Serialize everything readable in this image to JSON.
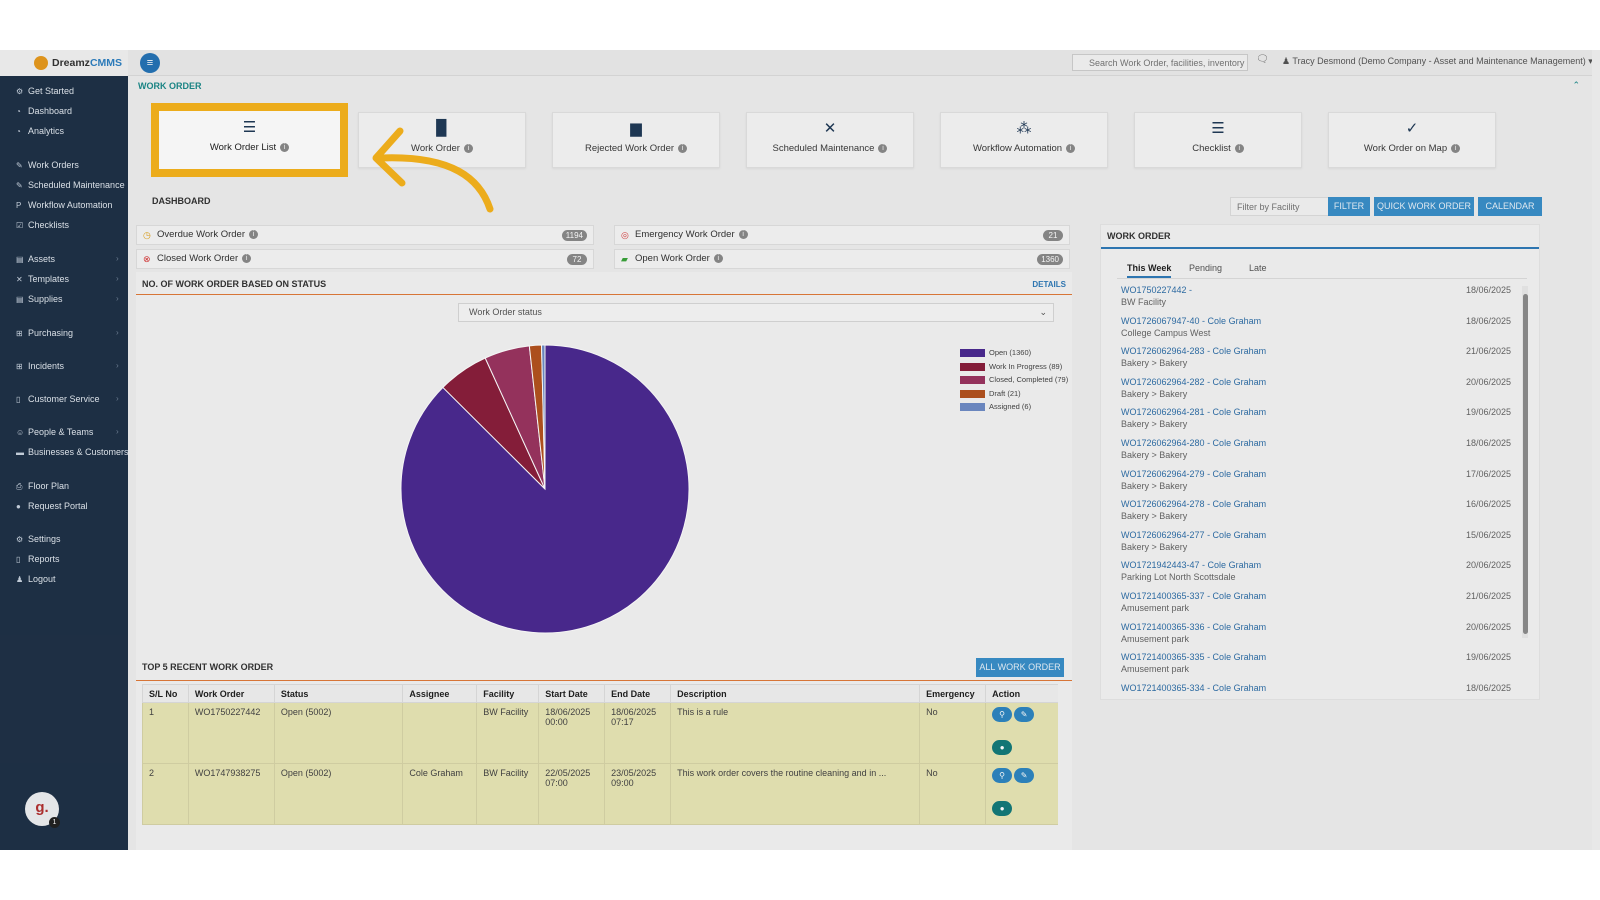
{
  "app": {
    "logo_prefix": "Dreamz",
    "logo_suffix": "CMMS"
  },
  "topbar": {
    "search_placeholder": "Search Work Order, facilities, inventory",
    "user": "Tracy Desmond (Demo Company - Asset and Maintenance Management)"
  },
  "sidebar": {
    "items": [
      {
        "label": "Get Started",
        "icon": "gears-icon"
      },
      {
        "label": "Dashboard",
        "icon": "dashboard-icon"
      },
      {
        "label": "Analytics",
        "icon": "analytics-icon"
      },
      {
        "label": "Work Orders",
        "icon": "wrench-icon"
      },
      {
        "label": "Scheduled Maintenance",
        "icon": "wrench-icon"
      },
      {
        "label": "Workflow Automation",
        "icon": "workflow-icon"
      },
      {
        "label": "Checklists",
        "icon": "checkbox-icon"
      },
      {
        "label": "Assets",
        "icon": "assets-icon"
      },
      {
        "label": "Templates",
        "icon": "shuffle-icon"
      },
      {
        "label": "Supplies",
        "icon": "supplies-icon"
      },
      {
        "label": "Purchasing",
        "icon": "cart-icon"
      },
      {
        "label": "Incidents",
        "icon": "cart-icon"
      },
      {
        "label": "Customer Service",
        "icon": "file-icon"
      },
      {
        "label": "People & Teams",
        "icon": "people-icon"
      },
      {
        "label": "Businesses & Customers",
        "icon": "card-icon"
      },
      {
        "label": "Floor Plan",
        "icon": "print-icon"
      },
      {
        "label": "Request Portal",
        "icon": "chat-icon"
      },
      {
        "label": "Settings",
        "icon": "gear-icon"
      },
      {
        "label": "Reports",
        "icon": "file-icon"
      },
      {
        "label": "Logout",
        "icon": "user-icon"
      }
    ],
    "avatar_letter": "g.",
    "avatar_badge": "1"
  },
  "section_title": "WORK ORDER",
  "tiles": [
    {
      "label": "Work Order List",
      "icon": "list-icon"
    },
    {
      "label": "Work Order",
      "icon": "document-icon"
    },
    {
      "label": "Rejected Work Order",
      "icon": "trash-icon"
    },
    {
      "label": "Scheduled Maintenance",
      "icon": "tools-icon"
    },
    {
      "label": "Workflow Automation",
      "icon": "workflow-icon"
    },
    {
      "label": "Checklist",
      "icon": "checklist-icon"
    },
    {
      "label": "Work Order on Map",
      "icon": "map-check-icon"
    }
  ],
  "dashboard": {
    "title": "DASHBOARD",
    "filter_placeholder": "Filter by Facility",
    "filter_btn": "FILTER",
    "quick_btn": "QUICK WORK ORDER",
    "calendar_btn": "CALENDAR",
    "stats": [
      {
        "label": "Overdue Work Order",
        "count": "1194",
        "color": "#e0a21a"
      },
      {
        "label": "Emergency Work Order",
        "count": "21",
        "color": "#d83a3a"
      },
      {
        "label": "Closed Work Order",
        "count": "72",
        "color": "#d83a3a"
      },
      {
        "label": "Open Work Order",
        "count": "1360",
        "color": "#3aa33a"
      }
    ]
  },
  "status_panel": {
    "title": "NO. OF WORK ORDER BASED ON STATUS",
    "details": "DETAILS",
    "select_value": "Work Order status"
  },
  "chart_data": {
    "type": "pie",
    "labels": [
      "Open (1360)",
      "Work In Progress (89)",
      "Closed, Completed (79)",
      "Draft (21)",
      "Assigned (6)"
    ],
    "values": [
      1360,
      89,
      79,
      21,
      6
    ],
    "colors": [
      "#4b2a91",
      "#8a1f3c",
      "#9b3560",
      "#b4531f",
      "#6f8cc6"
    ]
  },
  "right_panel": {
    "title": "WORK ORDER",
    "tabs": [
      "This Week",
      "Pending",
      "Late"
    ],
    "items": [
      {
        "id": "WO1750227442 -",
        "sub": "BW Facility",
        "date": "18/06/2025"
      },
      {
        "id": "WO1726067947-40 - Cole Graham",
        "sub": "College Campus West",
        "date": "18/06/2025"
      },
      {
        "id": "WO1726062964-283 - Cole Graham",
        "sub": "Bakery > Bakery",
        "date": "21/06/2025"
      },
      {
        "id": "WO1726062964-282 - Cole Graham",
        "sub": "Bakery > Bakery",
        "date": "20/06/2025"
      },
      {
        "id": "WO1726062964-281 - Cole Graham",
        "sub": "Bakery > Bakery",
        "date": "19/06/2025"
      },
      {
        "id": "WO1726062964-280 - Cole Graham",
        "sub": "Bakery > Bakery",
        "date": "18/06/2025"
      },
      {
        "id": "WO1726062964-279 - Cole Graham",
        "sub": "Bakery > Bakery",
        "date": "17/06/2025"
      },
      {
        "id": "WO1726062964-278 - Cole Graham",
        "sub": "Bakery > Bakery",
        "date": "16/06/2025"
      },
      {
        "id": "WO1726062964-277 - Cole Graham",
        "sub": "Bakery > Bakery",
        "date": "15/06/2025"
      },
      {
        "id": "WO1721942443-47 - Cole Graham",
        "sub": "Parking Lot North Scottsdale",
        "date": "20/06/2025"
      },
      {
        "id": "WO1721400365-337 - Cole Graham",
        "sub": "Amusement park",
        "date": "21/06/2025"
      },
      {
        "id": "WO1721400365-336 - Cole Graham",
        "sub": "Amusement park",
        "date": "20/06/2025"
      },
      {
        "id": "WO1721400365-335 - Cole Graham",
        "sub": "Amusement park",
        "date": "19/06/2025"
      },
      {
        "id": "WO1721400365-334 - Cole Graham",
        "sub": "",
        "date": "18/06/2025"
      }
    ]
  },
  "recent": {
    "title": "TOP 5 RECENT WORK ORDER",
    "all_btn": "ALL WORK ORDER",
    "columns": [
      "S/L No",
      "Work Order",
      "Status",
      "Assignee",
      "Facility",
      "Start Date",
      "End Date",
      "Description",
      "Emergency",
      "Action"
    ],
    "rows": [
      {
        "sl": "1",
        "wo": "WO1750227442",
        "status": "Open (5002)",
        "assignee": "",
        "facility": "BW Facility",
        "start": "18/06/2025 00:00",
        "end": "18/06/2025 07:17",
        "desc": "This is a rule",
        "emergency": "No"
      },
      {
        "sl": "2",
        "wo": "WO1747938275",
        "status": "Open (5002)",
        "assignee": "Cole Graham",
        "facility": "BW Facility",
        "start": "22/05/2025 07:00",
        "end": "23/05/2025 09:00",
        "desc": "This work order covers the routine cleaning and in ...",
        "emergency": "No"
      }
    ]
  }
}
